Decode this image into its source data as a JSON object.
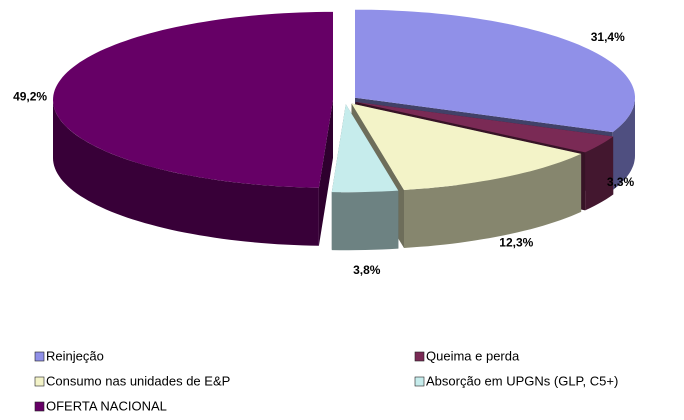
{
  "chart_data": {
    "type": "pie",
    "categories": [
      "Reinjeção",
      "Queima e perda",
      "Consumo nas unidades de E&P",
      "Absorção em UPGNs (GLP, C5+)",
      "OFERTA NACIONAL"
    ],
    "values": [
      31.4,
      3.3,
      12.3,
      3.8,
      49.2
    ],
    "value_labels": [
      "31,4%",
      "3,3%",
      "12,3%",
      "3,8%",
      "49,2%"
    ],
    "colors": [
      "#9090e8",
      "#7a2a55",
      "#f3f3c8",
      "#c6ecec",
      "#660066"
    ],
    "legend": "bottom"
  }
}
